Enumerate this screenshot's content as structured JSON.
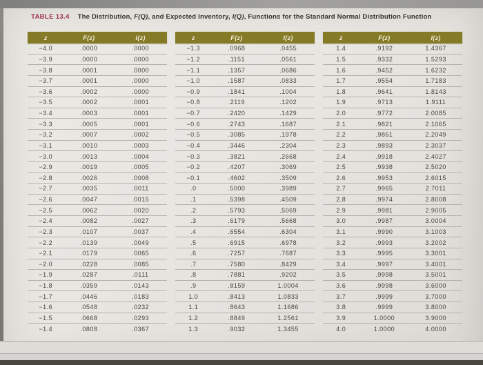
{
  "title": {
    "label": "TABLE 13.4",
    "segments": [
      {
        "text": "The Distribution, "
      },
      {
        "text": "F(Q)",
        "italic": true
      },
      {
        "text": ", and Expected Inventory, "
      },
      {
        "text": "I(Q)",
        "italic": true
      },
      {
        "text": ", Functions for the Standard Normal Distribution Function"
      }
    ]
  },
  "columns": [
    "z",
    "F(z)",
    "I(z)"
  ],
  "colors": {
    "header_bg": "#857b26",
    "header_text": "#f3eedd",
    "table_label": "#9c2f45",
    "title_text": "#333231",
    "row_text": "#46443f",
    "row_rule": "#b5b3ae"
  },
  "groups": [
    {
      "rows": [
        [
          "−4.0",
          ".0000",
          ".0000"
        ],
        [
          "−3.9",
          ".0000",
          ".0000"
        ],
        [
          "−3.8",
          ".0001",
          ".0000"
        ],
        [
          "−3.7",
          ".0001",
          ".0000"
        ],
        [
          "−3.6",
          ".0002",
          ".0000"
        ],
        [
          "−3.5",
          ".0002",
          ".0001"
        ],
        [
          "−3.4",
          ".0003",
          ".0001"
        ],
        [
          "−3.3",
          ".0005",
          ".0001"
        ],
        [
          "−3.2",
          ".0007",
          ".0002"
        ],
        [
          "−3.1",
          ".0010",
          ".0003"
        ],
        [
          "−3.0",
          ".0013",
          ".0004"
        ],
        [
          "−2.9",
          ".0019",
          ".0005"
        ],
        [
          "−2.8",
          ".0026",
          ".0008"
        ],
        [
          "−2.7",
          ".0035",
          ".0011"
        ],
        [
          "−2.6",
          ".0047",
          ".0015"
        ],
        [
          "−2.5",
          ".0062",
          ".0020"
        ],
        [
          "−2.4",
          ".0082",
          ".0027"
        ],
        [
          "−2.3",
          ".0107",
          ".0037"
        ],
        [
          "−2.2",
          ".0139",
          ".0049"
        ],
        [
          "−2.1",
          ".0179",
          ".0065"
        ],
        [
          "−2.0",
          ".0228",
          ".0085"
        ],
        [
          "−1.9",
          ".0287",
          ".0111"
        ],
        [
          "−1.8",
          ".0359",
          ".0143"
        ],
        [
          "−1.7",
          ".0446",
          ".0183"
        ],
        [
          "−1.6",
          ".0548",
          ".0232"
        ],
        [
          "−1.5",
          ".0668",
          ".0293"
        ],
        [
          "−1.4",
          ".0808",
          ".0367"
        ]
      ]
    },
    {
      "rows": [
        [
          "−1.3",
          ".0968",
          ".0455"
        ],
        [
          "−1.2",
          ".1151",
          ".0561"
        ],
        [
          "−1.1",
          ".1357",
          ".0686"
        ],
        [
          "−1.0",
          ".1587",
          ".0833"
        ],
        [
          "−0.9",
          ".1841",
          ".1004"
        ],
        [
          "−0.8",
          ".2119",
          ".1202"
        ],
        [
          "−0.7",
          ".2420",
          ".1429"
        ],
        [
          "−0.6",
          ".2743",
          ".1687"
        ],
        [
          "−0.5",
          ".3085",
          ".1978"
        ],
        [
          "−0.4",
          ".3446",
          ".2304"
        ],
        [
          "−0.3",
          ".3821",
          ".2668"
        ],
        [
          "−0.2",
          ".4207",
          ".3069"
        ],
        [
          "−0.1",
          ".4602",
          ".3509"
        ],
        [
          ".0",
          ".5000",
          ".3989"
        ],
        [
          ".1",
          ".5398",
          ".4509"
        ],
        [
          ".2",
          ".5793",
          ".5069"
        ],
        [
          ".3",
          ".6179",
          ".5668"
        ],
        [
          ".4",
          ".6554",
          ".6304"
        ],
        [
          ".5",
          ".6915",
          ".6978"
        ],
        [
          ".6",
          ".7257",
          ".7687"
        ],
        [
          ".7",
          ".7580",
          ".8429"
        ],
        [
          ".8",
          ".7881",
          ".9202"
        ],
        [
          ".9",
          ".8159",
          "1.0004"
        ],
        [
          "1.0",
          ".8413",
          "1.0833"
        ],
        [
          "1.1",
          ".8643",
          "1.1686"
        ],
        [
          "1.2",
          ".8849",
          "1.2561"
        ],
        [
          "1.3",
          ".9032",
          "1.3455"
        ]
      ]
    },
    {
      "rows": [
        [
          "1.4",
          ".9192",
          "1.4367"
        ],
        [
          "1.5",
          ".9332",
          "1.5293"
        ],
        [
          "1.6",
          ".9452",
          "1.6232"
        ],
        [
          "1.7",
          ".9554",
          "1.7183"
        ],
        [
          "1.8",
          ".9641",
          "1.8143"
        ],
        [
          "1.9",
          ".9713",
          "1.9111"
        ],
        [
          "2.0",
          ".9772",
          "2.0085"
        ],
        [
          "2.1",
          ".9821",
          "2.1065"
        ],
        [
          "2.2",
          ".9861",
          "2.2049"
        ],
        [
          "2.3",
          ".9893",
          "2.3037"
        ],
        [
          "2.4",
          ".9918",
          "2.4027"
        ],
        [
          "2.5",
          ".9938",
          "2.5020"
        ],
        [
          "2.6",
          ".9953",
          "2.6015"
        ],
        [
          "2.7",
          ".9965",
          "2.7011"
        ],
        [
          "2.8",
          ".9974",
          "2.8008"
        ],
        [
          "2.9",
          ".9981",
          "2.9005"
        ],
        [
          "3.0",
          ".9987",
          "3.0004"
        ],
        [
          "3.1",
          ".9990",
          "3.1003"
        ],
        [
          "3.2",
          ".9993",
          "3.2002"
        ],
        [
          "3.3",
          ".9995",
          "3.3001"
        ],
        [
          "3.4",
          ".9997",
          "3.4001"
        ],
        [
          "3.5",
          ".9998",
          "3.5001"
        ],
        [
          "3.6",
          ".9998",
          "3.6000"
        ],
        [
          "3.7",
          ".9999",
          "3.7000"
        ],
        [
          "3.8",
          ".9999",
          "3.8000"
        ],
        [
          "3.9",
          "1.0000",
          "3.9000"
        ],
        [
          "4.0",
          "1.0000",
          "4.0000"
        ]
      ]
    }
  ]
}
